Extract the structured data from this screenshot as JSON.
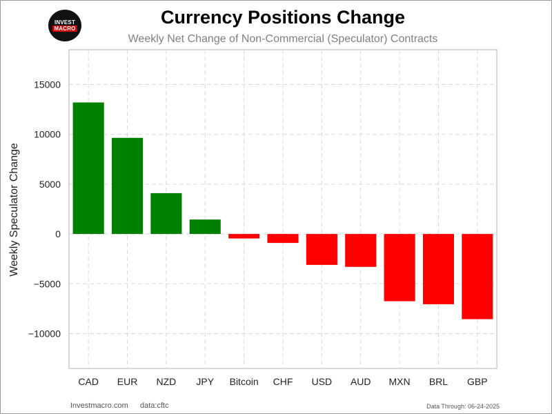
{
  "logo": {
    "line1": "INVEST",
    "line2": "MACRO"
  },
  "header": {
    "title": "Currency Positions Change",
    "subtitle": "Weekly Net Change of Non-Commercial (Speculator) Contracts"
  },
  "footer": {
    "site": "Investmacro.com",
    "source": "data:cftc",
    "data_through": "Data Through: 06-24-2025"
  },
  "colors": {
    "positive": "#008000",
    "negative": "#ff0000",
    "grid": "#d9d9d9",
    "axis_box": "#cccccc"
  },
  "chart_data": {
    "type": "bar",
    "title": "Currency Positions Change",
    "subtitle": "Weekly Net Change of Non-Commercial (Speculator) Contracts",
    "xlabel": "",
    "ylabel": "Weekly Speculator Change",
    "categories": [
      "CAD",
      "EUR",
      "NZD",
      "JPY",
      "Bitcoin",
      "CHF",
      "USD",
      "AUD",
      "MXN",
      "BRL",
      "GBP"
    ],
    "values": [
      13200,
      9650,
      4100,
      1450,
      -450,
      -900,
      -3100,
      -3300,
      -6750,
      -7050,
      -8550
    ],
    "ylim": [
      -13500,
      18500
    ],
    "yticks": [
      -10000,
      -5000,
      0,
      5000,
      10000,
      15000
    ],
    "ytick_labels": [
      "−10000",
      "−5000",
      "0",
      "5000",
      "10000",
      "15000"
    ],
    "grid": true,
    "legend": "none"
  }
}
